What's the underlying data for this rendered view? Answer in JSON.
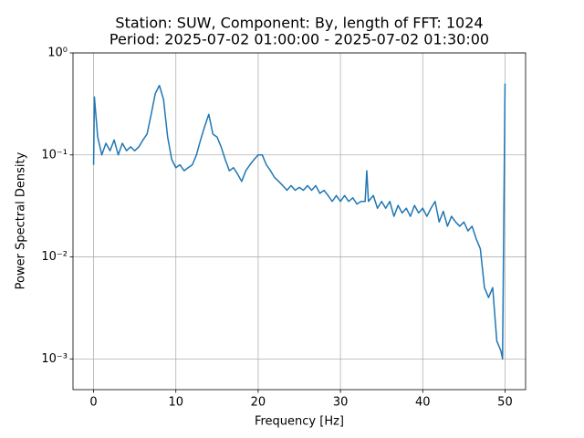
{
  "chart_data": {
    "type": "line",
    "title": "Station: SUW, Component: By, length of FFT: 1024",
    "subtitle": "Period: 2025-07-02 01:00:00 - 2025-07-02 01:30:00",
    "x_label": "Frequency [Hz]",
    "y_label": "Power Spectral Density",
    "color": "#1f77b4",
    "log_y": true,
    "grid": true,
    "xlim": [
      -2.5,
      52.5
    ],
    "ylim": [
      0.0005,
      1
    ],
    "xticks": [
      0,
      10,
      20,
      30,
      40,
      50
    ],
    "yticks": [
      {
        "value": 0.001,
        "label": "10⁻³"
      },
      {
        "value": 0.01,
        "label": "10⁻²"
      },
      {
        "value": 0.1,
        "label": "10⁻¹"
      },
      {
        "value": 1,
        "label": "10⁰"
      }
    ],
    "x": [
      0,
      0.1,
      0.5,
      1,
      1.5,
      2,
      2.5,
      3,
      3.5,
      4,
      4.5,
      5,
      5.5,
      6,
      6.5,
      7,
      7.5,
      8,
      8.5,
      9,
      9.5,
      10,
      10.5,
      11,
      11.5,
      12,
      12.5,
      13,
      13.5,
      14,
      14.5,
      15,
      15.5,
      16,
      16.5,
      17,
      17.5,
      18,
      18.5,
      19,
      19.5,
      20,
      20.5,
      21,
      21.5,
      22,
      22.5,
      23,
      23.5,
      24,
      24.5,
      25,
      25.5,
      26,
      26.5,
      27,
      27.5,
      28,
      28.5,
      29,
      29.5,
      30,
      30.5,
      31,
      31.5,
      32,
      32.5,
      33,
      33.2,
      33.4,
      34,
      34.5,
      35,
      35.5,
      36,
      36.5,
      37,
      37.5,
      38,
      38.5,
      39,
      39.5,
      40,
      40.5,
      41,
      41.5,
      42,
      42.5,
      43,
      43.5,
      44,
      44.5,
      45,
      45.5,
      46,
      46.5,
      47,
      47.5,
      48,
      48.5,
      49,
      49.5,
      49.7,
      50
    ],
    "values": [
      0.08,
      0.37,
      0.15,
      0.1,
      0.13,
      0.11,
      0.14,
      0.1,
      0.13,
      0.11,
      0.12,
      0.11,
      0.12,
      0.14,
      0.16,
      0.25,
      0.4,
      0.48,
      0.35,
      0.15,
      0.09,
      0.075,
      0.08,
      0.07,
      0.075,
      0.08,
      0.1,
      0.14,
      0.19,
      0.25,
      0.16,
      0.15,
      0.12,
      0.09,
      0.07,
      0.075,
      0.065,
      0.055,
      0.07,
      0.08,
      0.09,
      0.1,
      0.1,
      0.08,
      0.07,
      0.06,
      0.055,
      0.05,
      0.045,
      0.05,
      0.045,
      0.048,
      0.045,
      0.05,
      0.045,
      0.05,
      0.042,
      0.045,
      0.04,
      0.035,
      0.04,
      0.035,
      0.04,
      0.035,
      0.038,
      0.033,
      0.035,
      0.035,
      0.07,
      0.035,
      0.04,
      0.03,
      0.035,
      0.03,
      0.035,
      0.025,
      0.032,
      0.027,
      0.03,
      0.025,
      0.032,
      0.027,
      0.03,
      0.025,
      0.03,
      0.035,
      0.022,
      0.028,
      0.02,
      0.025,
      0.022,
      0.02,
      0.022,
      0.018,
      0.02,
      0.015,
      0.012,
      0.005,
      0.004,
      0.005,
      0.0015,
      0.0012,
      0.001,
      0.5
    ]
  }
}
